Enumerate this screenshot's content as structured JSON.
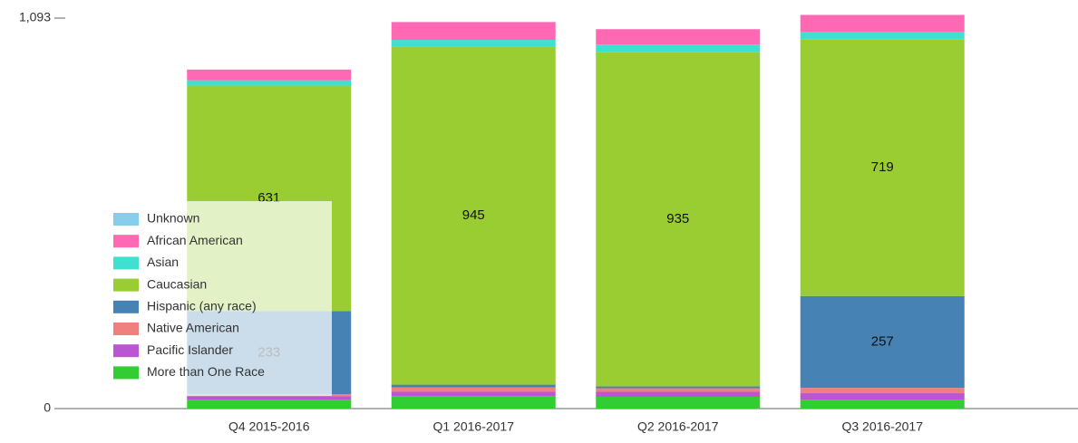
{
  "chart_data": {
    "type": "stacked_bar",
    "categories": [
      "Q4 2015-2016",
      "Q1 2016-2017",
      "Q2 2016-2017",
      "Q3 2016-2017"
    ],
    "series": [
      {
        "name": "More than One Race",
        "color": "#32cd32",
        "values": [
          25,
          35,
          33,
          25
        ]
      },
      {
        "name": "Pacific Islander",
        "color": "#ba55d3",
        "values": [
          10,
          12,
          14,
          18
        ]
      },
      {
        "name": "Native American",
        "color": "#f08080",
        "values": [
          5,
          12,
          10,
          15
        ]
      },
      {
        "name": "Hispanic (any race)",
        "color": "#4682b4",
        "values": [
          233,
          8,
          5,
          257
        ]
      },
      {
        "name": "Caucasian",
        "color": "#9acd32",
        "values": [
          631,
          945,
          935,
          719
        ]
      },
      {
        "name": "Asian",
        "color": "#40e0d0",
        "values": [
          15,
          20,
          22,
          20
        ]
      },
      {
        "name": "African American",
        "color": "#ff69b4",
        "values": [
          30,
          50,
          43,
          48
        ]
      },
      {
        "name": "Unknown",
        "color": "#87ceeb",
        "values": [
          0,
          0,
          0,
          0
        ]
      }
    ],
    "ylim": [
      0,
      1093
    ],
    "yticks": [
      0,
      {
        "value": 1093,
        "label": "1,093"
      }
    ],
    "legend": "bottom-left"
  }
}
